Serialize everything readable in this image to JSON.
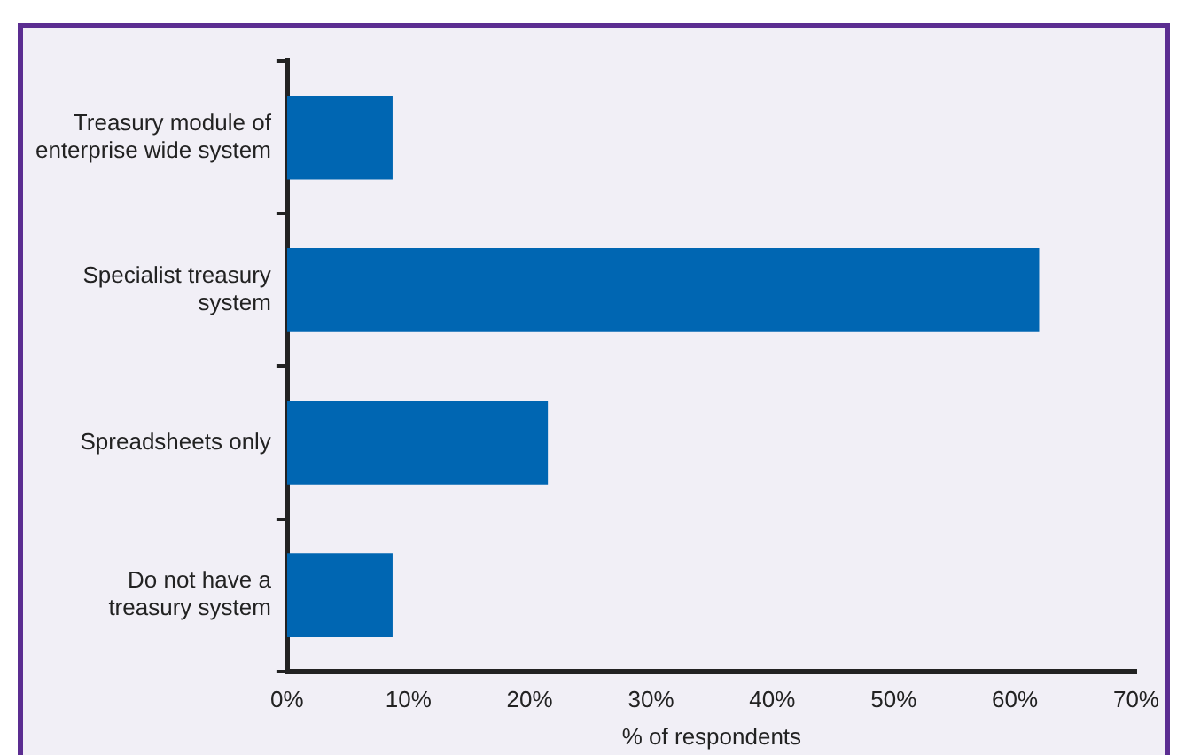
{
  "chart_data": {
    "type": "bar",
    "orientation": "horizontal",
    "xlabel": "% of respondents",
    "categories": [
      [
        "Treasury module of",
        "enterprise wide system"
      ],
      [
        "Specialist treasury",
        "system"
      ],
      [
        "Spreadsheets only"
      ],
      [
        "Do not have a",
        "treasury system"
      ]
    ],
    "values": [
      8.7,
      62,
      21.5,
      8.7
    ],
    "color": "#0066b2",
    "xlim": [
      0,
      70
    ],
    "xticks": [
      {
        "value": 0,
        "label": "0%"
      },
      {
        "value": 10,
        "label": "10%"
      },
      {
        "value": 20,
        "label": "20%"
      },
      {
        "value": 30,
        "label": "30%"
      },
      {
        "value": 40,
        "label": "40%"
      },
      {
        "value": 50,
        "label": "50%"
      },
      {
        "value": 60,
        "label": "60%"
      },
      {
        "value": 70,
        "label": "70%"
      }
    ],
    "grid": false,
    "legend": false
  }
}
